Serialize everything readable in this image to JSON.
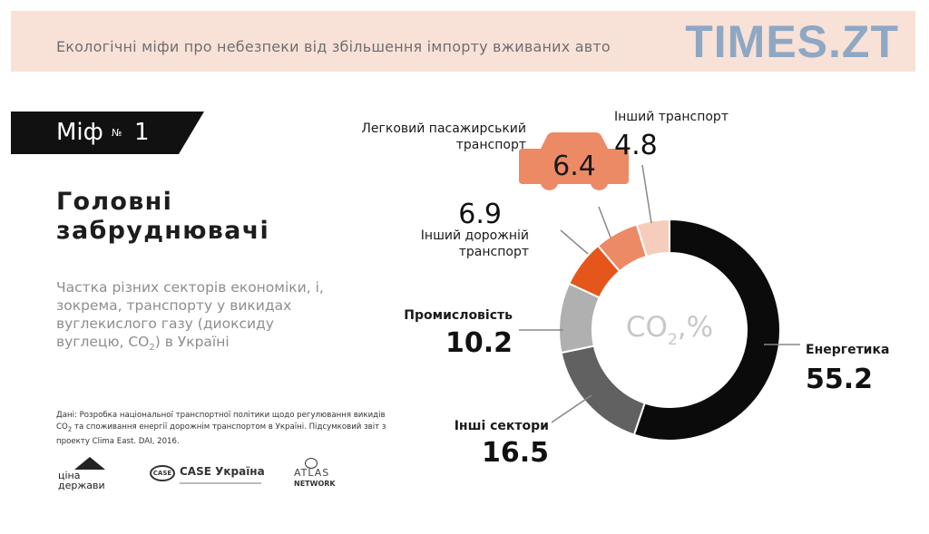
{
  "header": {
    "title": "Екологічні міфи про небезпеки від збільшення імпорту вживаних авто",
    "brand": "TIMES.ZT"
  },
  "myth": {
    "word": "Міф",
    "number_sign": "№",
    "number": "1"
  },
  "heading": {
    "line1": "Головні",
    "line2": "забруднювачі"
  },
  "description": {
    "text1": "Частка різних секторів економіки, і, зокрема, транспорту у викидах вуглекислого газу (диоксиду вуглецю, CO",
    "sub": "2",
    "text2": ") в Україні"
  },
  "source": {
    "text1": "Дані: Розробка національної транспортної політики щодо регулювання викидів CO",
    "sub": "2",
    "text2": " та споживання енергії дорожнім транспортом в Україні. Підсумковий звіт з проекту Clima East. DAI, 2016."
  },
  "logos": {
    "cina_line1": "ціна",
    "cina_line2": "держави",
    "case_mark": "CASE",
    "case_name": "CASE Україна",
    "atlas_line1": "ATLAS",
    "atlas_line2": "NETWORK"
  },
  "colors": {
    "energy": "#0b0b0b",
    "other_sectors": "#616161",
    "industry": "#b0b0b0",
    "road_other": "#e4561a",
    "passenger": "#ec8a66",
    "other_transport": "#f6cdbd",
    "label_gray": "#c7c7c7",
    "leader": "#888888"
  },
  "chart_data": {
    "type": "pie",
    "donut": true,
    "center_label": "CO",
    "center_sub": "2",
    "center_unit": ",%",
    "slices": [
      {
        "name": "Енергетика",
        "value": 55.2,
        "label_lines": [
          "Енергетика"
        ]
      },
      {
        "name": "Інші сектори",
        "value": 16.5,
        "label_lines": [
          "Інші сектори"
        ]
      },
      {
        "name": "Промисловість",
        "value": 10.2,
        "label_lines": [
          "Промисловість"
        ]
      },
      {
        "name": "Інший дорожній транспорт",
        "value": 6.9,
        "label_lines": [
          "Інший дорожній",
          "транспорт"
        ]
      },
      {
        "name": "Легковий пасажирський транспорт",
        "value": 6.4,
        "label_lines": [
          "Легковий пасажирський",
          "транспорт"
        ]
      },
      {
        "name": "Інший транспорт",
        "value": 4.8,
        "label_lines": [
          "Інший транспорт"
        ]
      }
    ]
  }
}
